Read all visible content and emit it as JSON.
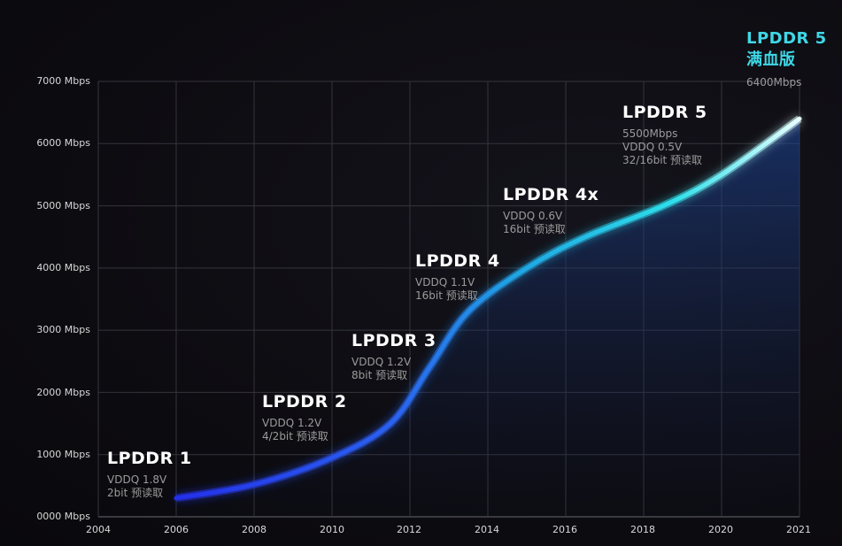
{
  "chart_data": {
    "type": "line",
    "title": "",
    "xlabel": "",
    "ylabel": "",
    "x_ticks": [
      "2004",
      "2006",
      "2008",
      "2010",
      "2012",
      "2014",
      "2016",
      "2018",
      "2020",
      "2021"
    ],
    "y_ticks": [
      "0000 Mbps",
      "1000 Mbps",
      "2000 Mbps",
      "3000 Mbps",
      "4000 Mbps",
      "5000 Mbps",
      "6000 Mbps",
      "7000 Mbps"
    ],
    "ylim": [
      0,
      7000
    ],
    "grid": true,
    "series": [
      {
        "name": "",
        "x": [
          2006,
          2008,
          2010,
          2011.5,
          2012.5,
          2013.5,
          2015,
          2016.5,
          2018.5,
          2020,
          2021
        ],
        "y": [
          300,
          520,
          950,
          1500,
          2400,
          3300,
          4000,
          4500,
          5000,
          5500,
          6400
        ]
      }
    ],
    "colors": {
      "start": "#2233e8",
      "mid": "#1f9be0",
      "end": "#c8fbff",
      "fill": "#1a3c8a"
    },
    "annotations": [
      {
        "id": "lpddr1",
        "label": "LPDDR 1",
        "spec": [
          "VDDQ 1.8V",
          "2bit 预读取"
        ]
      },
      {
        "id": "lpddr2",
        "label": "LPDDR 2",
        "spec": [
          "VDDQ 1.2V",
          "4/2bit 预读取"
        ]
      },
      {
        "id": "lpddr3",
        "label": "LPDDR 3",
        "spec": [
          "VDDQ 1.2V",
          "8bit 预读取"
        ]
      },
      {
        "id": "lpddr4",
        "label": "LPDDR 4",
        "spec": [
          "VDDQ 1.1V",
          "16bit 预读取"
        ]
      },
      {
        "id": "lpddr4x",
        "label": "LPDDR 4x",
        "spec": [
          "VDDQ 0.6V",
          "16bit 预读取"
        ]
      },
      {
        "id": "lpddr5",
        "label": "LPDDR 5",
        "spec": [
          "5500Mbps",
          "VDDQ 0.5V",
          "32/16bit 预读取"
        ]
      },
      {
        "id": "lpddr5full",
        "label": "LPDDR 5",
        "label2": "满血版",
        "spec": [
          "6400Mbps"
        ]
      }
    ]
  }
}
